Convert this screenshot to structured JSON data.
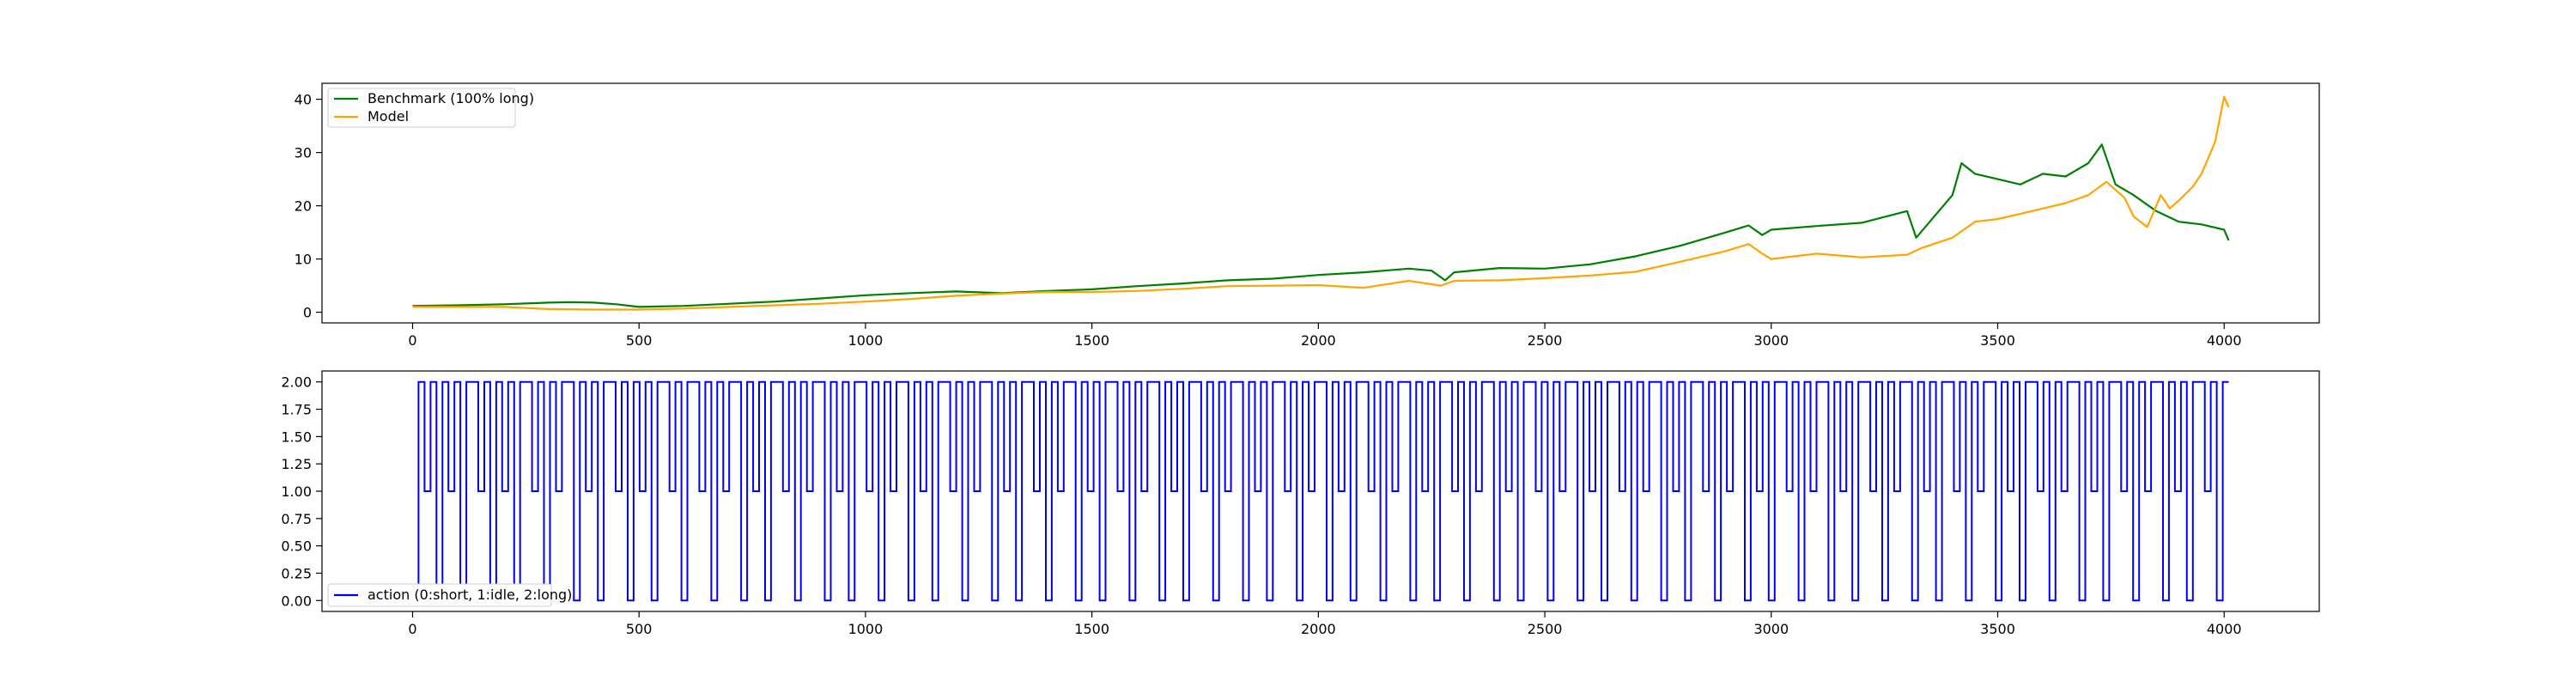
{
  "chart_data": [
    {
      "type": "line",
      "title": "",
      "xlabel": "",
      "ylabel": "",
      "xlim": [
        -200,
        4210
      ],
      "ylim": [
        -2,
        43
      ],
      "grid": false,
      "legend_position": "top-left",
      "xticks": [
        0,
        500,
        1000,
        1500,
        2000,
        2500,
        3000,
        3500,
        4000
      ],
      "yticks": [
        0,
        10,
        20,
        30,
        40
      ],
      "series": [
        {
          "name": "Benchmark (100% long)",
          "color": "#008000",
          "x": [
            0,
            100,
            200,
            300,
            350,
            400,
            450,
            500,
            600,
            700,
            800,
            900,
            1000,
            1100,
            1200,
            1300,
            1400,
            1500,
            1600,
            1700,
            1800,
            1900,
            2000,
            2100,
            2200,
            2250,
            2280,
            2300,
            2400,
            2500,
            2600,
            2700,
            2800,
            2900,
            2950,
            2980,
            3000,
            3100,
            3200,
            3300,
            3320,
            3350,
            3400,
            3420,
            3450,
            3500,
            3550,
            3600,
            3650,
            3700,
            3730,
            3760,
            3800,
            3850,
            3900,
            3950,
            4000,
            4010
          ],
          "y": [
            1.2,
            1.3,
            1.5,
            1.8,
            1.9,
            1.8,
            1.5,
            1.0,
            1.2,
            1.6,
            2.0,
            2.6,
            3.2,
            3.6,
            3.9,
            3.6,
            4.0,
            4.3,
            4.9,
            5.4,
            6.0,
            6.3,
            7.0,
            7.5,
            8.2,
            7.8,
            6.0,
            7.5,
            8.3,
            8.2,
            9.0,
            10.5,
            12.5,
            15.0,
            16.3,
            14.5,
            15.5,
            16.2,
            16.8,
            19.0,
            14.0,
            17.0,
            22.0,
            28.0,
            26.0,
            25.0,
            24.0,
            26.0,
            25.5,
            28.0,
            31.5,
            24.0,
            22.0,
            19.0,
            17.0,
            16.5,
            15.5,
            13.5
          ]
        },
        {
          "name": "Model",
          "color": "#ffa500",
          "x": [
            0,
            100,
            200,
            300,
            400,
            500,
            600,
            700,
            800,
            900,
            1000,
            1100,
            1200,
            1300,
            1400,
            1500,
            1600,
            1700,
            1800,
            1900,
            2000,
            2100,
            2200,
            2270,
            2300,
            2400,
            2500,
            2600,
            2700,
            2800,
            2900,
            2950,
            2980,
            3000,
            3100,
            3200,
            3300,
            3330,
            3400,
            3450,
            3500,
            3550,
            3600,
            3650,
            3700,
            3740,
            3780,
            3800,
            3830,
            3860,
            3880,
            3900,
            3930,
            3950,
            3980,
            4000,
            4010
          ],
          "y": [
            1.0,
            1.0,
            1.0,
            0.6,
            0.5,
            0.5,
            0.7,
            1.0,
            1.3,
            1.6,
            2.0,
            2.5,
            3.1,
            3.5,
            3.8,
            3.8,
            4.0,
            4.4,
            4.9,
            5.0,
            5.1,
            4.6,
            5.9,
            5.0,
            5.9,
            6.0,
            6.4,
            6.9,
            7.6,
            9.5,
            11.5,
            12.8,
            11.0,
            10.0,
            11.0,
            10.3,
            10.8,
            12.0,
            14.0,
            17.0,
            17.5,
            18.5,
            19.5,
            20.5,
            22.0,
            24.5,
            21.5,
            18.0,
            16.0,
            22.0,
            19.5,
            21.0,
            23.5,
            26.0,
            32.0,
            40.5,
            38.5
          ]
        }
      ]
    },
    {
      "type": "line",
      "title": "",
      "xlabel": "",
      "ylabel": "",
      "xlim": [
        -200,
        4210
      ],
      "ylim": [
        -0.1,
        2.1
      ],
      "grid": false,
      "legend_position": "bottom-left",
      "xticks": [
        0,
        500,
        1000,
        1500,
        2000,
        2500,
        3000,
        3500,
        4000
      ],
      "yticks": [
        "0.00",
        "0.25",
        "0.50",
        "0.75",
        "1.00",
        "1.25",
        "1.50",
        "1.75",
        "2.00"
      ],
      "series": [
        {
          "name": "action (0:short, 1:idle, 2:long)",
          "color": "#0000ff",
          "x_start": 0,
          "x_end": 4010,
          "values": [
            0,
            2,
            1,
            2,
            0,
            2,
            1,
            2,
            0,
            2,
            2,
            1,
            2,
            0,
            2,
            1,
            2,
            0,
            2,
            2,
            1,
            2,
            0,
            2,
            1,
            2,
            2,
            0,
            2,
            1,
            2,
            0,
            2,
            2,
            1,
            2,
            0,
            2,
            1,
            2,
            0,
            2,
            2,
            1,
            2,
            0,
            2,
            2,
            1,
            2,
            0,
            2,
            1,
            2,
            2,
            0,
            2,
            1,
            2,
            0,
            2,
            2,
            1,
            2,
            0,
            2,
            1,
            2,
            2,
            0,
            2,
            1,
            2,
            0,
            2,
            2,
            1,
            2,
            0,
            2,
            1,
            2,
            2,
            0,
            2,
            1,
            2,
            0,
            2,
            2,
            1,
            2,
            0,
            2,
            1,
            2,
            2,
            0,
            2,
            1,
            2,
            0,
            2,
            2,
            1,
            2,
            0,
            2,
            1,
            2,
            2,
            0,
            2,
            1,
            2,
            0,
            2,
            2,
            1,
            2,
            0,
            2,
            1,
            2,
            2,
            0,
            2,
            1,
            2,
            0,
            2,
            2,
            1,
            2,
            0,
            2,
            1,
            2,
            2,
            0,
            2,
            1,
            2,
            0,
            2,
            2,
            1,
            2,
            0,
            2,
            1,
            2,
            2,
            0,
            2,
            1,
            2,
            0,
            2,
            2,
            1,
            2,
            0,
            2,
            1,
            2,
            2,
            0,
            2,
            1,
            2,
            0,
            2,
            2,
            1,
            2,
            0,
            2,
            1,
            2,
            2,
            0,
            2,
            1,
            2,
            0,
            2,
            2,
            1,
            2,
            0,
            2,
            1,
            2,
            2,
            0,
            2,
            1,
            2,
            0,
            2,
            2,
            1,
            2,
            0,
            2,
            1,
            2,
            2,
            0,
            2,
            1,
            2,
            0,
            2,
            2,
            1,
            2,
            0,
            2,
            1,
            2,
            2,
            0,
            2,
            1,
            2,
            0,
            2,
            2,
            1,
            2,
            0,
            2,
            1,
            2,
            2,
            0,
            2,
            1,
            2,
            0,
            2,
            2,
            1,
            2,
            0,
            2,
            1,
            2,
            2,
            0,
            2,
            1,
            2,
            0,
            2,
            2,
            1,
            2,
            0,
            2,
            1,
            2,
            2,
            0,
            2,
            1,
            2,
            0,
            2,
            2,
            1,
            2,
            0,
            2,
            1,
            2,
            2,
            0,
            2,
            1,
            2,
            0,
            2,
            2,
            1,
            2,
            0,
            2,
            1,
            2,
            2,
            0,
            2,
            1,
            2,
            0,
            2,
            2,
            1,
            2,
            0,
            2,
            2
          ]
        }
      ]
    }
  ]
}
